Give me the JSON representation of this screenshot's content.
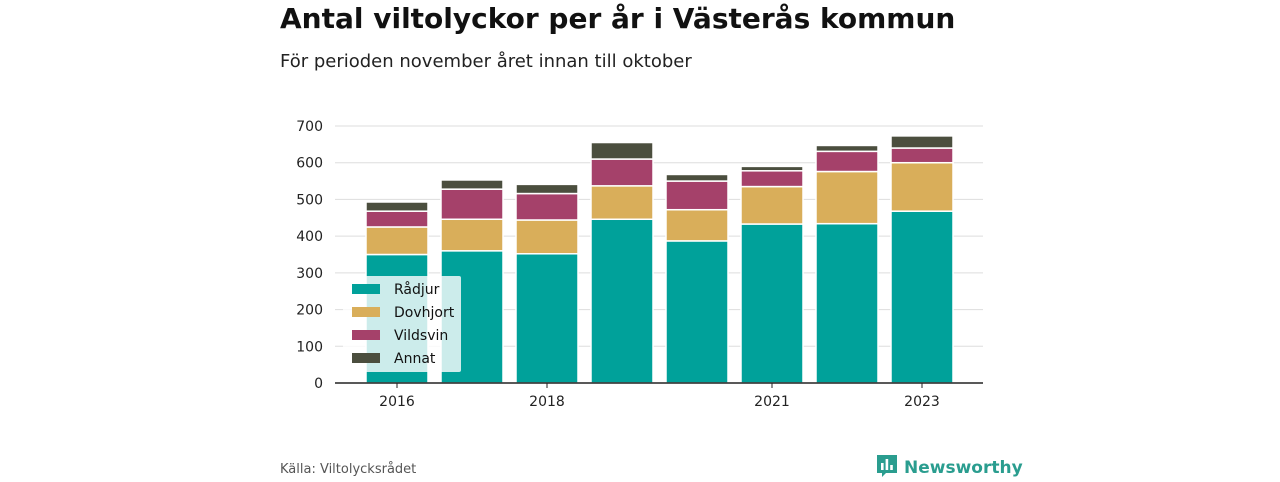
{
  "title": "Antal viltolyckor per år i Västerås kommun",
  "subtitle": "För perioden november året innan till oktober",
  "source": "Källa: Viltolycksrådet",
  "brand": "Newsworthy",
  "colors": {
    "radjur": "#00a19a",
    "dovhjort": "#d9ae5a",
    "vildsvin": "#a5416a",
    "annat": "#4b4e3e",
    "brand": "#2a9d8f"
  },
  "chart_data": {
    "type": "bar",
    "stacked": true,
    "categories": [
      "2016",
      "2017",
      "2018",
      "2019",
      "2020",
      "2021",
      "2022",
      "2023"
    ],
    "x_tick_labels": [
      "2016",
      "2018",
      "2021",
      "2023"
    ],
    "ylim": [
      0,
      700
    ],
    "y_ticks": [
      0,
      100,
      200,
      300,
      400,
      500,
      600,
      700
    ],
    "grid": true,
    "legend_position": "bottom-left",
    "series": [
      {
        "name": "Rådjur",
        "color": "#00a19a",
        "values": [
          350,
          360,
          352,
          446,
          387,
          433,
          434,
          468
        ]
      },
      {
        "name": "Dovhjort",
        "color": "#d9ae5a",
        "values": [
          75,
          86,
          92,
          91,
          85,
          102,
          142,
          132
        ]
      },
      {
        "name": "Vildsvin",
        "color": "#a5416a",
        "values": [
          43,
          82,
          72,
          73,
          78,
          43,
          55,
          40
        ]
      },
      {
        "name": "Annat",
        "color": "#4b4e3e",
        "values": [
          25,
          25,
          25,
          45,
          18,
          12,
          16,
          33
        ]
      }
    ]
  }
}
